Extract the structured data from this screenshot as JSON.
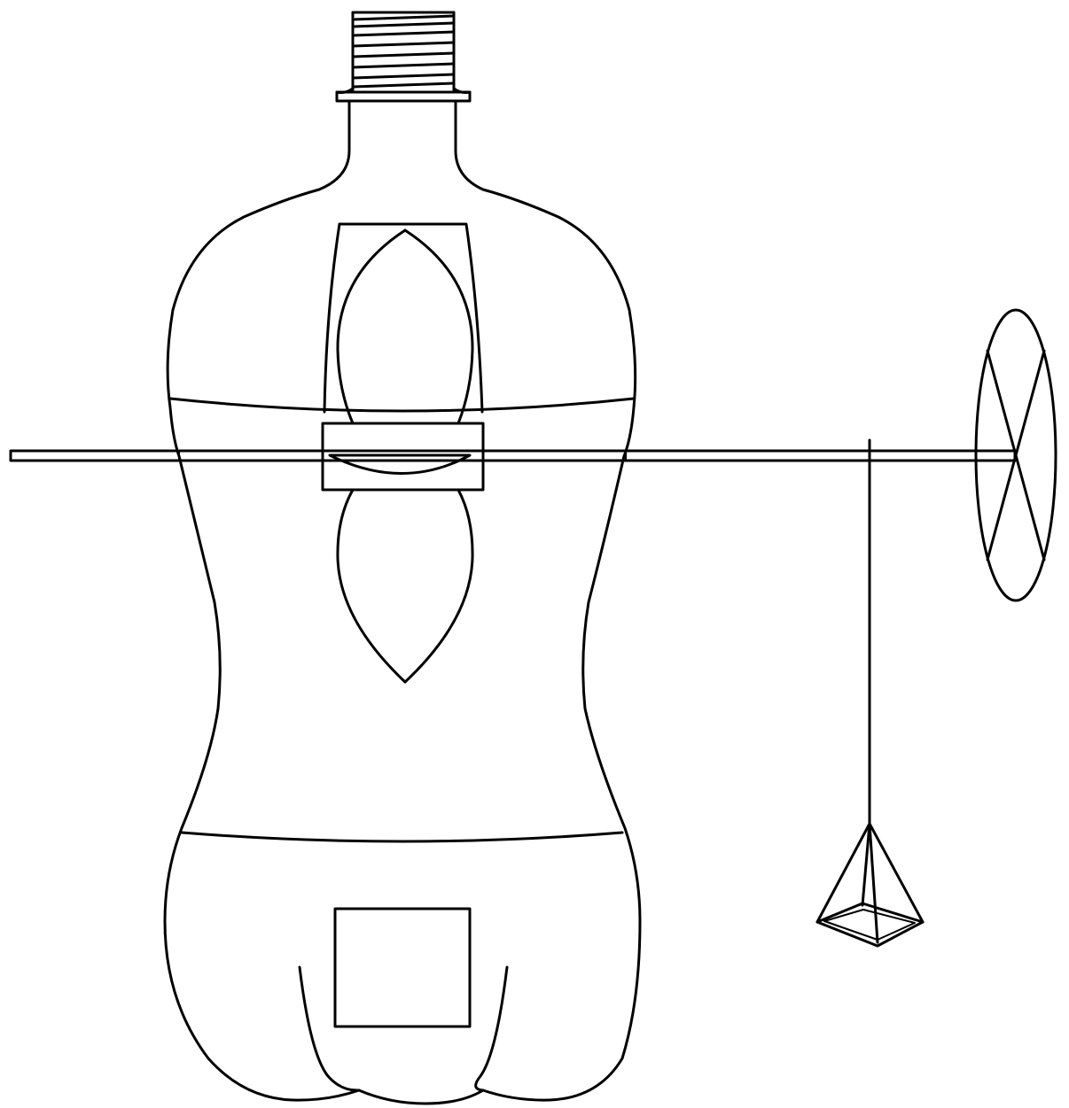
{
  "diagram": {
    "background": "#ffffff",
    "stroke_color": "#000000",
    "components": [
      {
        "id": "bottle-cap-thread",
        "icon": "thread-icon"
      },
      {
        "id": "bottle-body",
        "icon": "bottle-icon"
      },
      {
        "id": "window-panel",
        "icon": "window-icon"
      },
      {
        "id": "propeller-blades",
        "icon": "propeller-icon"
      },
      {
        "id": "axle-hub",
        "icon": "hub-icon"
      },
      {
        "id": "axle-rod",
        "icon": "rod-icon"
      },
      {
        "id": "wheel",
        "icon": "wheel-icon"
      },
      {
        "id": "string",
        "icon": "string-icon"
      },
      {
        "id": "weight-basket",
        "icon": "pyramid-icon"
      },
      {
        "id": "bottom-square",
        "icon": "square-icon"
      }
    ]
  }
}
